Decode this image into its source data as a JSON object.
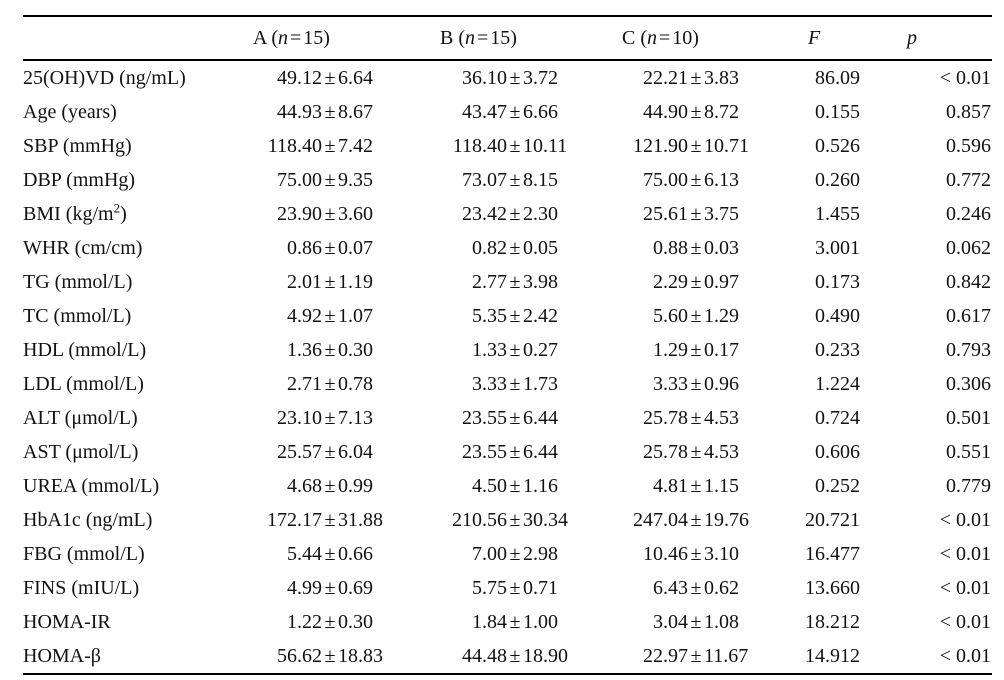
{
  "table": {
    "header": {
      "blank": "",
      "groups": [
        {
          "pre": "A (",
          "nvar": "n",
          "eq": "=",
          "count": "15)"
        },
        {
          "pre": "B (",
          "nvar": "n",
          "eq": "=",
          "count": "15)"
        },
        {
          "pre": "C (",
          "nvar": "n",
          "eq": "=",
          "count": "10)"
        }
      ],
      "f": "F",
      "p": "p"
    },
    "symbols": {
      "plus_minus": "±"
    },
    "rows": [
      {
        "label": "25(OH)VD (ng/mL)",
        "sup": "",
        "label_end": "",
        "a_mean": "49.12",
        "a_sd": "6.64",
        "b_mean": "36.10",
        "b_sd": "3.72",
        "c_mean": "22.21",
        "c_sd": "3.83",
        "f": "86.09",
        "p": "< 0.01"
      },
      {
        "label": "Age (years)",
        "sup": "",
        "label_end": "",
        "a_mean": "44.93",
        "a_sd": "8.67",
        "b_mean": "43.47",
        "b_sd": "6.66",
        "c_mean": "44.90",
        "c_sd": "8.72",
        "f": "0.155",
        "p": "0.857"
      },
      {
        "label": "SBP (mmHg)",
        "sup": "",
        "label_end": "",
        "a_mean": "118.40",
        "a_sd": "7.42",
        "b_mean": "118.40",
        "b_sd": "10.11",
        "c_mean": "121.90",
        "c_sd": "10.71",
        "f": "0.526",
        "p": "0.596"
      },
      {
        "label": "DBP (mmHg)",
        "sup": "",
        "label_end": "",
        "a_mean": "75.00",
        "a_sd": "9.35",
        "b_mean": "73.07",
        "b_sd": "8.15",
        "c_mean": "75.00",
        "c_sd": "6.13",
        "f": "0.260",
        "p": "0.772"
      },
      {
        "label": "BMI (kg/m",
        "sup": "2",
        "label_end": ")",
        "a_mean": "23.90",
        "a_sd": "3.60",
        "b_mean": "23.42",
        "b_sd": "2.30",
        "c_mean": "25.61",
        "c_sd": "3.75",
        "f": "1.455",
        "p": "0.246"
      },
      {
        "label": "WHR (cm/cm)",
        "sup": "",
        "label_end": "",
        "a_mean": "0.86",
        "a_sd": "0.07",
        "b_mean": "0.82",
        "b_sd": "0.05",
        "c_mean": "0.88",
        "c_sd": "0.03",
        "f": "3.001",
        "p": "0.062"
      },
      {
        "label": "TG (mmol/L)",
        "sup": "",
        "label_end": "",
        "a_mean": "2.01",
        "a_sd": "1.19",
        "b_mean": "2.77",
        "b_sd": "3.98",
        "c_mean": "2.29",
        "c_sd": "0.97",
        "f": "0.173",
        "p": "0.842"
      },
      {
        "label": "TC (mmol/L)",
        "sup": "",
        "label_end": "",
        "a_mean": "4.92",
        "a_sd": "1.07",
        "b_mean": "5.35",
        "b_sd": "2.42",
        "c_mean": "5.60",
        "c_sd": "1.29",
        "f": "0.490",
        "p": "0.617"
      },
      {
        "label": "HDL (mmol/L)",
        "sup": "",
        "label_end": "",
        "a_mean": "1.36",
        "a_sd": "0.30",
        "b_mean": "1.33",
        "b_sd": "0.27",
        "c_mean": "1.29",
        "c_sd": "0.17",
        "f": "0.233",
        "p": "0.793"
      },
      {
        "label": "LDL (mmol/L)",
        "sup": "",
        "label_end": "",
        "a_mean": "2.71",
        "a_sd": "0.78",
        "b_mean": "3.33",
        "b_sd": "1.73",
        "c_mean": "3.33",
        "c_sd": "0.96",
        "f": "1.224",
        "p": "0.306"
      },
      {
        "label": "ALT (μmol/L)",
        "sup": "",
        "label_end": "",
        "a_mean": "23.10",
        "a_sd": "7.13",
        "b_mean": "23.55",
        "b_sd": "6.44",
        "c_mean": "25.78",
        "c_sd": "4.53",
        "f": "0.724",
        "p": "0.501"
      },
      {
        "label": "AST (μmol/L)",
        "sup": "",
        "label_end": "",
        "a_mean": "25.57",
        "a_sd": "6.04",
        "b_mean": "23.55",
        "b_sd": "6.44",
        "c_mean": "25.78",
        "c_sd": "4.53",
        "f": "0.606",
        "p": "0.551"
      },
      {
        "label": "UREA (mmol/L)",
        "sup": "",
        "label_end": "",
        "a_mean": "4.68",
        "a_sd": "0.99",
        "b_mean": "4.50",
        "b_sd": "1.16",
        "c_mean": "4.81",
        "c_sd": "1.15",
        "f": "0.252",
        "p": "0.779"
      },
      {
        "label": "HbA1c (ng/mL)",
        "sup": "",
        "label_end": "",
        "a_mean": "172.17",
        "a_sd": "31.88",
        "b_mean": "210.56",
        "b_sd": "30.34",
        "c_mean": "247.04",
        "c_sd": "19.76",
        "f": "20.721",
        "p": "< 0.01"
      },
      {
        "label": "FBG (mmol/L)",
        "sup": "",
        "label_end": "",
        "a_mean": "5.44",
        "a_sd": "0.66",
        "b_mean": "7.00",
        "b_sd": "2.98",
        "c_mean": "10.46",
        "c_sd": "3.10",
        "f": "16.477",
        "p": "< 0.01"
      },
      {
        "label": "FINS (mIU/L)",
        "sup": "",
        "label_end": "",
        "a_mean": "4.99",
        "a_sd": "0.69",
        "b_mean": "5.75",
        "b_sd": "0.71",
        "c_mean": "6.43",
        "c_sd": "0.62",
        "f": "13.660",
        "p": "< 0.01"
      },
      {
        "label": "HOMA-IR",
        "sup": "",
        "label_end": "",
        "a_mean": "1.22",
        "a_sd": "0.30",
        "b_mean": "1.84",
        "b_sd": "1.00",
        "c_mean": "3.04",
        "c_sd": "1.08",
        "f": "18.212",
        "p": "< 0.01"
      },
      {
        "label": "HOMA-β",
        "sup": "",
        "label_end": "",
        "a_mean": "56.62",
        "a_sd": "18.83",
        "b_mean": "44.48",
        "b_sd": "18.90",
        "c_mean": "22.97",
        "c_sd": "11.67",
        "f": "14.912",
        "p": "< 0.01"
      }
    ]
  },
  "colors": {
    "text": "#121212",
    "rule": "#000000",
    "background": "#ffffff"
  }
}
